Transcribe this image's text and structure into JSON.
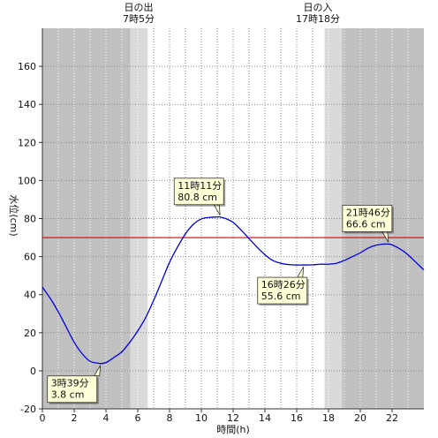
{
  "chart_data": {
    "type": "line",
    "xlabel": "時間(h)",
    "ylabel": "水位(cm)",
    "xlim": [
      0,
      24
    ],
    "ylim": [
      -20,
      180
    ],
    "x_ticks": [
      0,
      2,
      4,
      6,
      8,
      10,
      12,
      14,
      16,
      18,
      20,
      22
    ],
    "y_ticks": [
      -20,
      0,
      20,
      40,
      60,
      80,
      100,
      120,
      140,
      160
    ],
    "grid": true,
    "sunrise": {
      "label": "日の出",
      "time": "7時5分",
      "hour": 7.083
    },
    "sunset": {
      "label": "日の入",
      "time": "17時18分",
      "hour": 17.3
    },
    "reference_level": 70,
    "colors": {
      "line": "#0000dd",
      "reference": "#dd0000",
      "night": "#c0c0c0",
      "twilight": "#dadada",
      "day": "#ffffff"
    },
    "series": [
      {
        "x": [
          0,
          0.5,
          1,
          1.5,
          2,
          2.5,
          3,
          3.5,
          3.65,
          4,
          4.5,
          5,
          5.5,
          6,
          6.5,
          7,
          7.5,
          8,
          8.5,
          9,
          9.5,
          10,
          10.5,
          11,
          11.18,
          11.5,
          12,
          12.5,
          13,
          13.5,
          14,
          14.5,
          15,
          15.5,
          16,
          16.43,
          17,
          17.5,
          18,
          18.5,
          19,
          19.5,
          20,
          20.5,
          21,
          21.5,
          21.77,
          22,
          22.5,
          23,
          23.5,
          24
        ],
        "y": [
          44,
          38,
          31,
          23,
          15,
          9,
          5,
          4,
          3.8,
          4.3,
          7,
          10,
          15,
          21,
          28,
          37,
          47,
          57,
          65,
          72,
          77,
          79.8,
          80.6,
          80.8,
          80.8,
          80.1,
          78,
          74,
          69.5,
          65,
          61,
          58,
          56.5,
          55.8,
          55.6,
          55.6,
          55.7,
          56,
          56,
          56.5,
          58,
          60,
          62,
          64.5,
          66,
          66.6,
          66.6,
          66.2,
          64,
          61,
          57,
          53
        ]
      }
    ],
    "annotations": [
      {
        "time": "11時11分",
        "level": "80.8 cm",
        "x": 11.18,
        "y": 80.8,
        "side": "above"
      },
      {
        "time": "3時39分",
        "level": "3.8 cm",
        "x": 3.65,
        "y": 3.8,
        "side": "below"
      },
      {
        "time": "16時26分",
        "level": "55.6 cm",
        "x": 16.43,
        "y": 55.6,
        "side": "below"
      },
      {
        "time": "21時46分",
        "level": "66.6 cm",
        "x": 21.77,
        "y": 66.6,
        "side": "above"
      }
    ]
  }
}
